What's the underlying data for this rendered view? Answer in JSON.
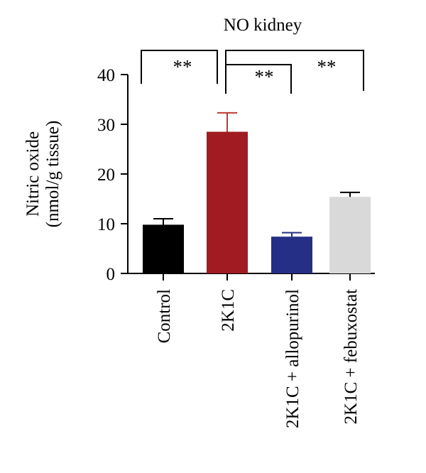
{
  "chart_data": {
    "type": "bar",
    "title": "NO kidney",
    "ylabel_line1": "Nitric oxide",
    "ylabel_line2": "(nmol/g tissue)",
    "xlabel": "",
    "ylim": [
      0,
      40
    ],
    "yticks": [
      0,
      10,
      20,
      30,
      40
    ],
    "grid": false,
    "categories": [
      "Control",
      "2K1C",
      "2K1C + allopurinol",
      "2K1C + febuxostat"
    ],
    "values": [
      9.8,
      28.5,
      7.4,
      15.4
    ],
    "errors": [
      1.2,
      3.8,
      0.8,
      0.9
    ],
    "colors": [
      "#000000",
      "#a01c22",
      "#262f86",
      "#d9d9d9"
    ],
    "error_colors": [
      "#000000",
      "#c0392b",
      "#262f86",
      "#000000"
    ],
    "significance": [
      {
        "from": 0,
        "to": 1,
        "label": "**"
      },
      {
        "from": 1,
        "to": 2,
        "label": "**"
      },
      {
        "from": 1,
        "to": 3,
        "label": "**"
      }
    ]
  }
}
